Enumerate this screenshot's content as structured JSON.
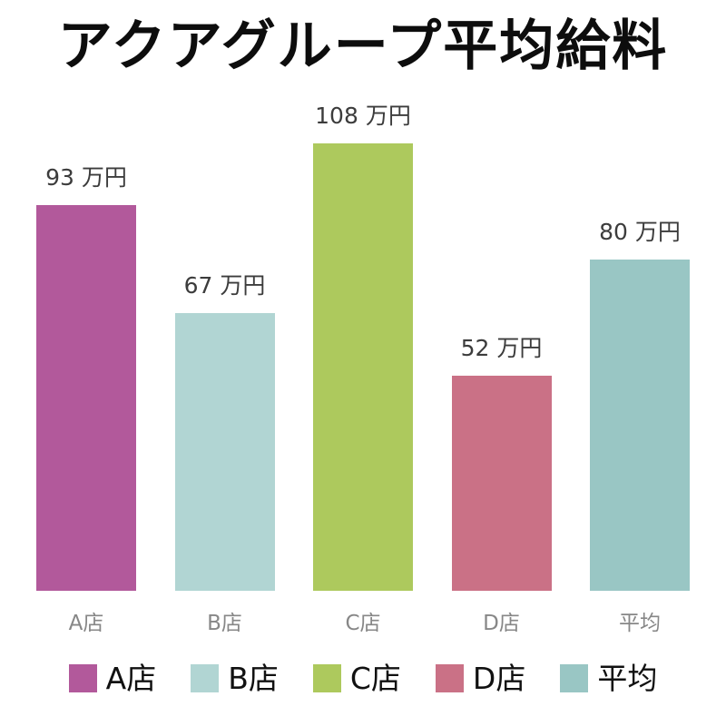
{
  "title": "アクアグループ平均給料",
  "chart_data": {
    "type": "bar",
    "title": "アクアグループ平均給料",
    "categories": [
      "A店",
      "B店",
      "C店",
      "D店",
      "平均"
    ],
    "values": [
      93,
      67,
      108,
      52,
      80
    ],
    "value_labels": [
      "93 万円",
      "67 万円",
      "108 万円",
      "52 万円",
      "80 万円"
    ],
    "unit": "万円",
    "bar_colors": [
      "#b2599b",
      "#b1d5d3",
      "#adc95d",
      "#ca7186",
      "#99c6c4"
    ],
    "xlabel": "",
    "ylabel": "",
    "ylim": [
      0,
      109.5
    ],
    "grid": false,
    "axis_lines": false,
    "legend_position": "bottom",
    "legend": [
      {
        "label": "A店",
        "color": "#b2599b"
      },
      {
        "label": "B店",
        "color": "#b1d5d3"
      },
      {
        "label": "C店",
        "color": "#adc95d"
      },
      {
        "label": "D店",
        "color": "#ca7186"
      },
      {
        "label": "平均",
        "color": "#99c6c4"
      }
    ]
  },
  "text_colors": {
    "title": "#0d0d0d",
    "value_label": "#3c3c3c",
    "x_label": "#878787",
    "legend_label": "#111111"
  }
}
